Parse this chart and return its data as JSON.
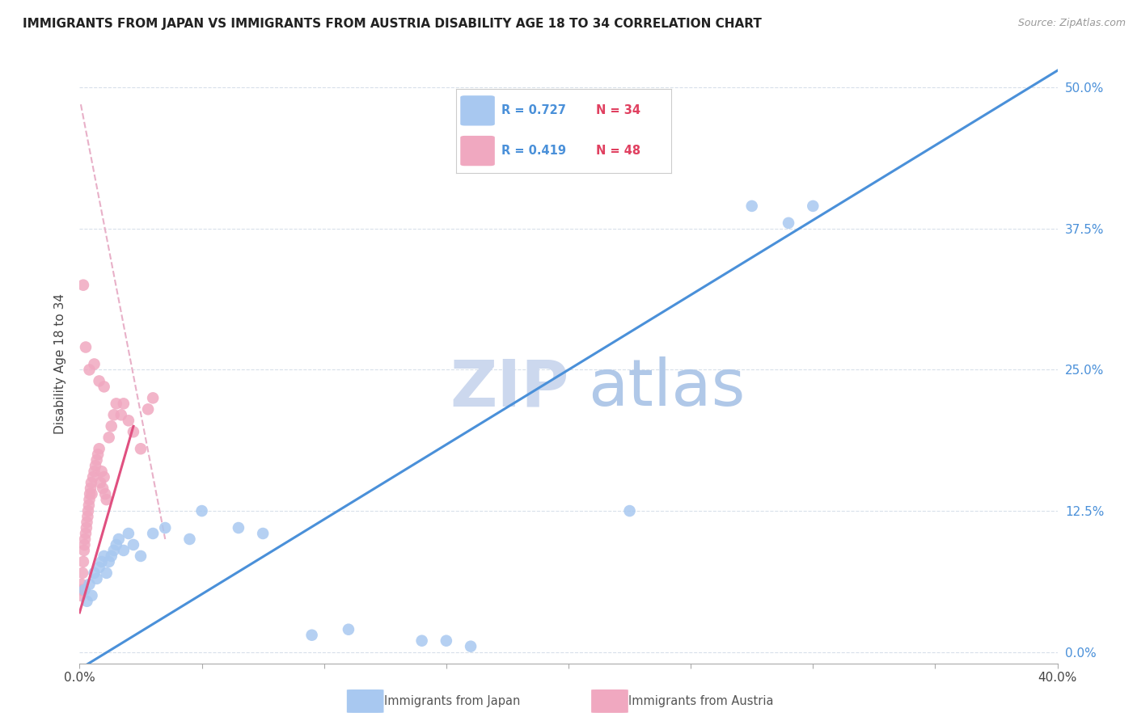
{
  "title": "IMMIGRANTS FROM JAPAN VS IMMIGRANTS FROM AUSTRIA DISABILITY AGE 18 TO 34 CORRELATION CHART",
  "source": "Source: ZipAtlas.com",
  "ylabel": "Disability Age 18 to 34",
  "ytick_labels": [
    "0.0%",
    "12.5%",
    "25.0%",
    "37.5%",
    "50.0%"
  ],
  "ytick_values": [
    0.0,
    12.5,
    25.0,
    37.5,
    50.0
  ],
  "xlim": [
    0.0,
    40.0
  ],
  "ylim": [
    -1.0,
    52.0
  ],
  "legend_japan_r": "R = 0.727",
  "legend_japan_n": "N = 34",
  "legend_austria_r": "R = 0.419",
  "legend_austria_n": "N = 48",
  "japan_color": "#a8c8f0",
  "austria_color": "#f0a8c0",
  "japan_line_color": "#4a90d9",
  "austria_line_color": "#e05080",
  "austria_dashed_color": "#e8b0c8",
  "watermark_zip_color": "#ccd8ee",
  "watermark_atlas_color": "#b0c8e8",
  "japan_x": [
    0.2,
    0.3,
    0.4,
    0.5,
    0.6,
    0.7,
    0.8,
    0.9,
    1.0,
    1.1,
    1.2,
    1.3,
    1.4,
    1.5,
    1.6,
    1.8,
    2.0,
    2.2,
    2.5,
    3.0,
    3.5,
    4.5,
    5.0,
    6.5,
    7.5,
    9.5,
    11.0,
    14.0,
    15.0,
    16.0,
    22.5,
    27.5,
    29.0,
    30.0
  ],
  "japan_y": [
    5.5,
    4.5,
    6.0,
    5.0,
    7.0,
    6.5,
    7.5,
    8.0,
    8.5,
    7.0,
    8.0,
    8.5,
    9.0,
    9.5,
    10.0,
    9.0,
    10.5,
    9.5,
    8.5,
    10.5,
    11.0,
    10.0,
    12.5,
    11.0,
    10.5,
    1.5,
    2.0,
    1.0,
    1.0,
    0.5,
    12.5,
    39.5,
    38.0,
    39.5
  ],
  "austria_x": [
    0.05,
    0.08,
    0.1,
    0.12,
    0.15,
    0.18,
    0.2,
    0.22,
    0.25,
    0.28,
    0.3,
    0.33,
    0.35,
    0.38,
    0.4,
    0.42,
    0.45,
    0.48,
    0.5,
    0.55,
    0.6,
    0.65,
    0.7,
    0.75,
    0.8,
    0.85,
    0.9,
    0.95,
    1.0,
    1.05,
    1.1,
    1.2,
    1.3,
    1.4,
    1.5,
    1.7,
    1.8,
    2.0,
    2.2,
    2.5,
    2.8,
    3.0,
    0.15,
    0.25,
    0.4,
    0.6,
    0.8,
    1.0
  ],
  "austria_y": [
    5.0,
    6.0,
    5.5,
    7.0,
    8.0,
    9.0,
    9.5,
    10.0,
    10.5,
    11.0,
    11.5,
    12.0,
    12.5,
    13.0,
    13.5,
    14.0,
    14.5,
    15.0,
    14.0,
    15.5,
    16.0,
    16.5,
    17.0,
    17.5,
    18.0,
    15.0,
    16.0,
    14.5,
    15.5,
    14.0,
    13.5,
    19.0,
    20.0,
    21.0,
    22.0,
    21.0,
    22.0,
    20.5,
    19.5,
    18.0,
    21.5,
    22.5,
    32.5,
    27.0,
    25.0,
    25.5,
    24.0,
    23.5
  ],
  "japan_line_x0": 0.0,
  "japan_line_y0": -1.5,
  "japan_line_x1": 40.0,
  "japan_line_y1": 51.5,
  "austria_solid_x0": 0.0,
  "austria_solid_y0": 3.5,
  "austria_solid_x1": 2.2,
  "austria_solid_y1": 20.0,
  "austria_dashed_x0": 0.05,
  "austria_dashed_y0": 48.5,
  "austria_dashed_x1": 3.5,
  "austria_dashed_y1": 10.0
}
